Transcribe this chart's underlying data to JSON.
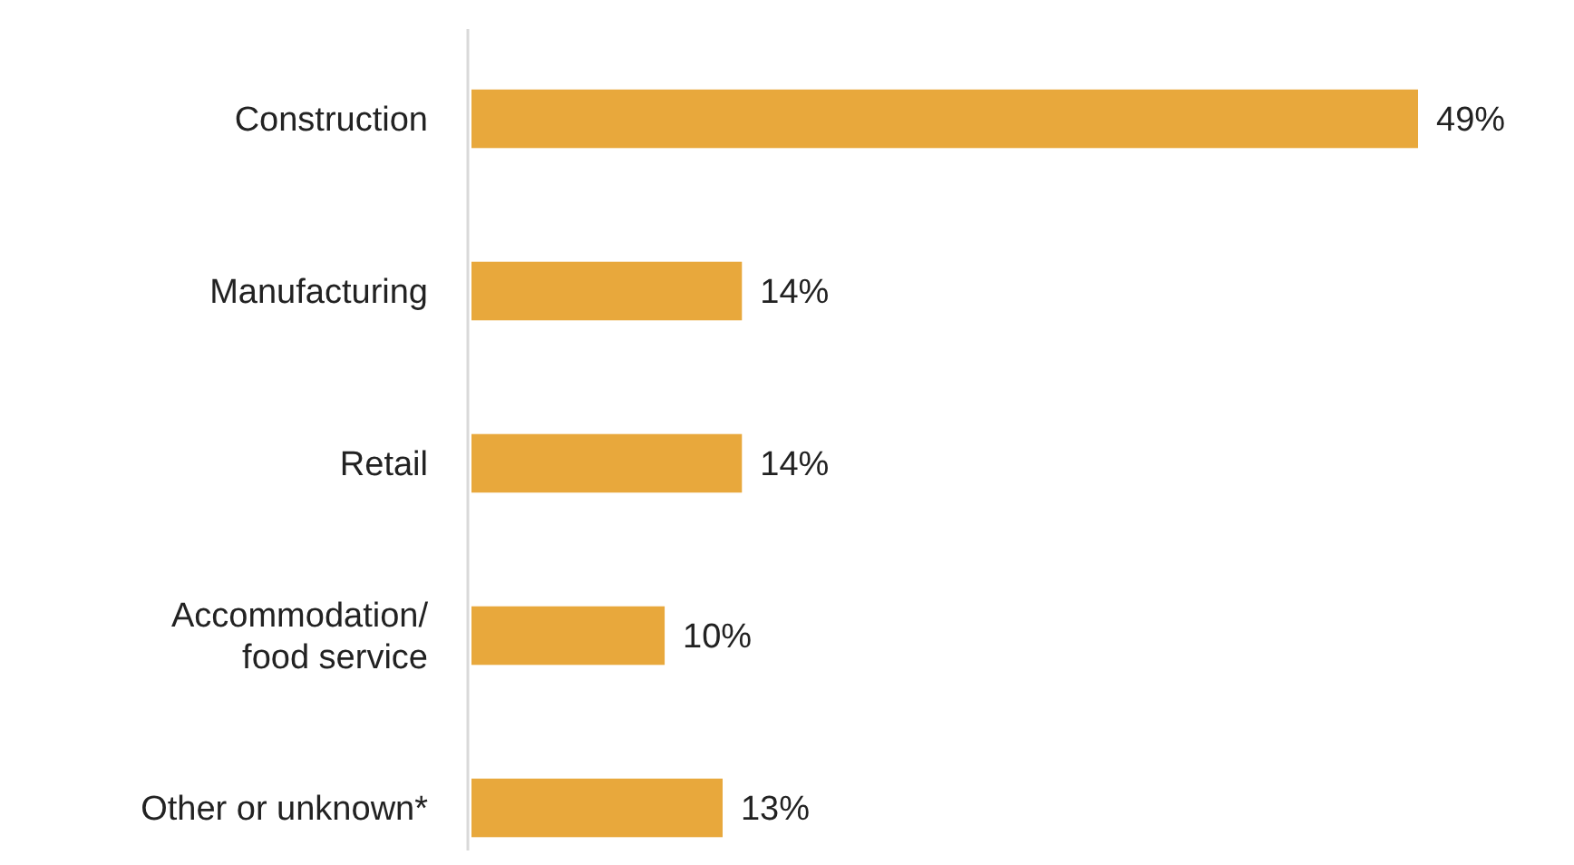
{
  "chart_data": {
    "type": "bar",
    "orientation": "horizontal",
    "categories": [
      "Construction",
      "Manufacturing",
      "Retail",
      "Accommodation/\nfood service",
      "Other or unknown*"
    ],
    "values": [
      49,
      14,
      14,
      10,
      13
    ],
    "color": "#e8a83c",
    "data_labels": true,
    "value_labels": [
      "49%",
      "14%",
      "14%",
      "10%",
      "13%"
    ]
  }
}
